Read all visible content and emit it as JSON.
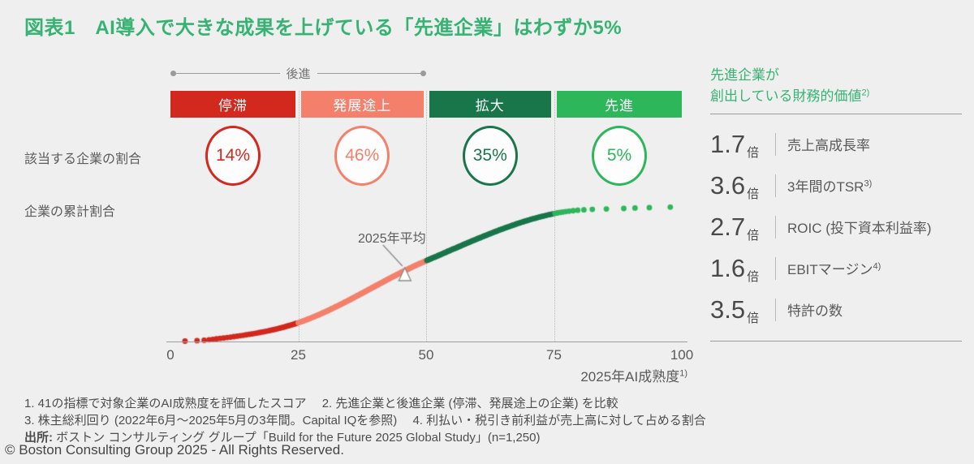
{
  "page": {
    "title": "図表1　AI導入で大きな成果を上げている「先進企業」はわずか5%",
    "copyright": "© Boston Consulting Group 2025 - All Rights Reserved."
  },
  "maturity_bands": {
    "bracket_label": "後進",
    "bands": [
      {
        "label": "停滞",
        "share": "14%",
        "color": "#d2281e"
      },
      {
        "label": "発展途上",
        "share": "46%",
        "color": "#f4806c"
      },
      {
        "label": "拡大",
        "share": "35%",
        "color": "#18764a"
      },
      {
        "label": "先進",
        "share": "5%",
        "color": "#2db65a"
      }
    ]
  },
  "row_labels": {
    "share": "該当する企業の割合",
    "cumulative": "企業の累計割合"
  },
  "chart": {
    "annotation": "2025年平均",
    "x_axis_label": "2025年AI成熟度",
    "x_axis_label_sup": "1)"
  },
  "chart_data": {
    "type": "scatter",
    "title": "企業の累計割合（2025年AI成熟度の累積分布）",
    "xlabel": "2025年AI成熟度",
    "ylabel": "企業の累計割合",
    "xlim": [
      0,
      100
    ],
    "ylim_pct": [
      0,
      100
    ],
    "x_ticks": [
      0,
      25,
      50,
      75,
      100
    ],
    "grid_x": [
      25,
      50,
      75
    ],
    "grid": "vertical-dotted",
    "legend": "none",
    "segments": [
      {
        "label": "停滞",
        "x_range": [
          0,
          25
        ],
        "share_pct": 14,
        "color": "#d2281e"
      },
      {
        "label": "発展途上",
        "x_range": [
          25,
          50
        ],
        "share_pct": 46,
        "color": "#f4806c"
      },
      {
        "label": "拡大",
        "x_range": [
          50,
          75
        ],
        "share_pct": 35,
        "color": "#18764a"
      },
      {
        "label": "先進",
        "x_range": [
          75,
          100
        ],
        "share_pct": 5,
        "color": "#2db65a"
      }
    ],
    "cumulative_anchor_points": {
      "x": [
        1,
        8,
        25,
        50,
        75,
        90,
        100
      ],
      "cum_pct": [
        0,
        1.5,
        14,
        60,
        95,
        99,
        100
      ]
    },
    "mean_2025": {
      "x": 46,
      "cum_pct": 50
    },
    "num_dots": 300
  },
  "value_panel": {
    "title_line1": "先進企業が",
    "title_line2": "創出している財務的価値",
    "title_sup": "2)",
    "accent_color": "#36b372",
    "items": [
      {
        "value": "1.7",
        "unit": "倍",
        "label": "売上高成長率",
        "sup": ""
      },
      {
        "value": "3.6",
        "unit": "倍",
        "label": "3年間のTSR",
        "sup": "3)"
      },
      {
        "value": "2.7",
        "unit": "倍",
        "label": "ROIC (投下資本利益率)",
        "sup": ""
      },
      {
        "value": "1.6",
        "unit": "倍",
        "label": "EBITマージン",
        "sup": "4)"
      },
      {
        "value": "3.5",
        "unit": "倍",
        "label": "特許の数",
        "sup": ""
      }
    ]
  },
  "footnotes": {
    "line1": "1. 41の指標で対象企業のAI成熟度を評価したスコア　 2. 先進企業と後進企業 (停滞、発展途上の企業) を比較",
    "line2": "3. 株主総利回り (2022年6月～2025年5月の3年間。Capital IQを参照)　 4. 利払い・税引き前利益が売上高に対して占める割合",
    "source_label": "出所:",
    "source_text": " ボストン コンサルティング グループ「Build for the Future 2025 Global Study」(n=1,250)"
  }
}
